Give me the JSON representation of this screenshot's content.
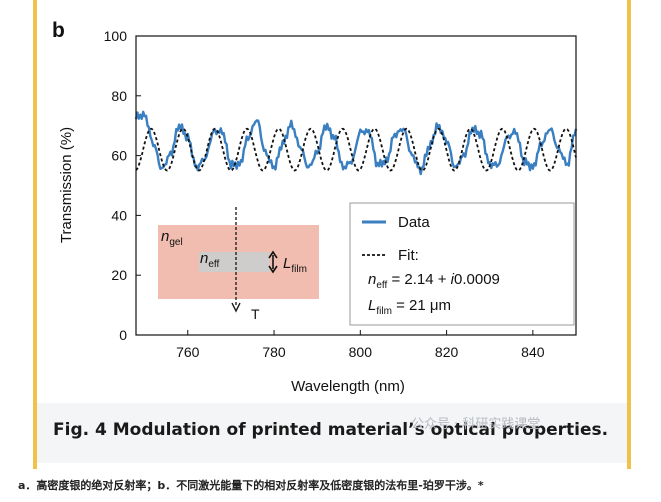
{
  "chart_data": {
    "type": "line",
    "panel_label": "b",
    "title": "",
    "xlabel": "Wavelength (nm)",
    "ylabel": "Transmission (%)",
    "xlim": [
      748,
      850
    ],
    "ylim": [
      0,
      100
    ],
    "xticks": [
      760,
      780,
      800,
      820,
      840
    ],
    "yticks": [
      0,
      20,
      40,
      60,
      80,
      100
    ],
    "grid": false,
    "legend_position": "bottom-right",
    "oscillation": {
      "mean": 62,
      "amplitude": 7,
      "period_nm": 7.4,
      "phase_nm": 751.5
    },
    "series": [
      {
        "name": "Data",
        "style": "solid",
        "color": "#3a7fc1",
        "x": [
          748,
          750,
          752,
          754,
          756,
          758,
          760,
          762,
          764,
          766,
          768,
          770,
          772,
          774,
          776,
          778,
          780,
          782,
          784,
          786,
          788,
          790,
          792,
          794,
          796,
          798,
          800,
          802,
          804,
          806,
          808,
          810,
          812,
          814,
          816,
          818,
          820,
          822,
          824,
          826,
          828,
          830,
          832,
          834,
          836,
          838,
          840,
          842,
          844,
          846,
          848,
          850
        ],
        "y": [
          73,
          73.5,
          64,
          55.5,
          60.5,
          70,
          66,
          56,
          59,
          68,
          68,
          57,
          57,
          66,
          72,
          61,
          56,
          64,
          70.5,
          63,
          56,
          61,
          70,
          66,
          56,
          58,
          68,
          68,
          57,
          58,
          67,
          69,
          60,
          55,
          63,
          70,
          65,
          56,
          60,
          69,
          67,
          57,
          57,
          66,
          68,
          58,
          56,
          64,
          69,
          62,
          57,
          69
        ]
      },
      {
        "name": "Fit",
        "style": "dashed",
        "color": "#111111"
      }
    ],
    "legend": {
      "data_label": "Data",
      "fit_label": "Fit:",
      "neff_sym": "n",
      "neff_sub": "eff",
      "neff_value": " = 2.14 + ",
      "neff_imag_i": "i",
      "neff_imag_val": "0.0009",
      "lfilm_sym": "L",
      "lfilm_sub": "film",
      "lfilm_value": " = 21 μm"
    },
    "inset": {
      "ngel_sym": "n",
      "ngel_sub": "gel",
      "neff_sym": "n",
      "neff_sub": "eff",
      "lfilm_sym": "L",
      "lfilm_sub": "film",
      "transmit_label": "T",
      "outer_color": "#f1bdb0",
      "film_color": "#cfcccc"
    }
  },
  "figure_caption": "Fig. 4 Modulation of printed material’s optical properties.",
  "watermark": "公众号 · 科研实践课堂",
  "bottom_caption": "a．高密度银的绝对反射率；b．不同激光能量下的相对反射率及低密度银的法布里-珀罗干涉。*",
  "colors": {
    "accent_bar": "#f0c24a",
    "caption_band": "#f4f5f7"
  }
}
